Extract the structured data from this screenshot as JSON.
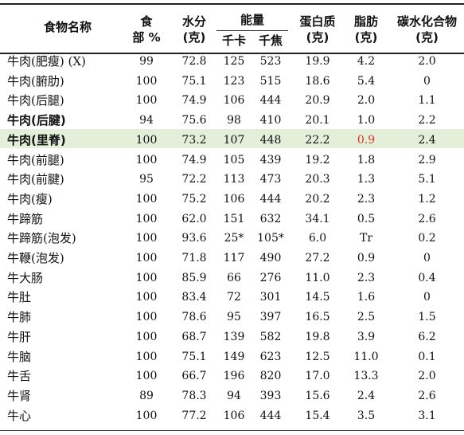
{
  "header": {
    "name": "食物名称",
    "edible_top": "食",
    "edible_bottom": "部 %",
    "water_top": "水分",
    "water_bottom": "(克)",
    "energy": "能量",
    "kcal": "千卡",
    "kj": "千焦",
    "protein_top": "蛋白质",
    "protein_bottom": "(克)",
    "fat_top": "脂肪",
    "fat_bottom": "(克)",
    "carb_top": "碳水化合物",
    "carb_bottom": "(克)"
  },
  "rows": [
    {
      "name": "牛肉(肥瘦) (X)",
      "edible": "99",
      "water": "72.8",
      "kcal": "125",
      "kj": "523",
      "protein": "19.9",
      "fat": "4.2",
      "carb": "2.0"
    },
    {
      "name": "牛肉(腑肋)",
      "edible": "100",
      "water": "75.1",
      "kcal": "123",
      "kj": "515",
      "protein": "18.6",
      "fat": "5.4",
      "carb": "0"
    },
    {
      "name": "牛肉(后腿)",
      "edible": "100",
      "water": "74.9",
      "kcal": "106",
      "kj": "444",
      "protein": "20.9",
      "fat": "2.0",
      "carb": "1.1"
    },
    {
      "name": "牛肉(后腱)",
      "edible": "94",
      "water": "75.6",
      "kcal": "98",
      "kj": "410",
      "protein": "20.1",
      "fat": "1.0",
      "carb": "2.2",
      "bold": true
    },
    {
      "name": "牛肉(里脊)",
      "edible": "100",
      "water": "73.2",
      "kcal": "107",
      "kj": "448",
      "protein": "22.2",
      "fat": "0.9",
      "carb": "2.4",
      "bold": true,
      "highlight": true,
      "fat_color": "#e03020"
    },
    {
      "name": "牛肉(前腿)",
      "edible": "100",
      "water": "74.9",
      "kcal": "105",
      "kj": "439",
      "protein": "19.2",
      "fat": "1.8",
      "carb": "2.9"
    },
    {
      "name": "牛肉(前腱)",
      "edible": "95",
      "water": "72.2",
      "kcal": "113",
      "kj": "473",
      "protein": "20.3",
      "fat": "1.3",
      "carb": "5.1"
    },
    {
      "name": "牛肉(瘦)",
      "edible": "100",
      "water": "75.2",
      "kcal": "106",
      "kj": "444",
      "protein": "20.2",
      "fat": "2.3",
      "carb": "1.2"
    },
    {
      "name": "牛蹄筋",
      "edible": "100",
      "water": "62.0",
      "kcal": "151",
      "kj": "632",
      "protein": "34.1",
      "fat": "0.5",
      "carb": "2.6"
    },
    {
      "name": "牛蹄筋(泡发)",
      "edible": "100",
      "water": "93.6",
      "kcal": "25*",
      "kj": "105*",
      "protein": "6.0",
      "fat": "Tr",
      "carb": "0.2"
    },
    {
      "name": "牛鞭(泡发)",
      "edible": "100",
      "water": "71.8",
      "kcal": "117",
      "kj": "490",
      "protein": "27.2",
      "fat": "0.9",
      "carb": "0"
    },
    {
      "name": "牛大肠",
      "edible": "100",
      "water": "85.9",
      "kcal": "66",
      "kj": "276",
      "protein": "11.0",
      "fat": "2.3",
      "carb": "0.4"
    },
    {
      "name": "牛肚",
      "edible": "100",
      "water": "83.4",
      "kcal": "72",
      "kj": "301",
      "protein": "14.5",
      "fat": "1.6",
      "carb": "0"
    },
    {
      "name": "牛肺",
      "edible": "100",
      "water": "78.6",
      "kcal": "95",
      "kj": "397",
      "protein": "16.5",
      "fat": "2.5",
      "carb": "1.5"
    },
    {
      "name": "牛肝",
      "edible": "100",
      "water": "68.7",
      "kcal": "139",
      "kj": "582",
      "protein": "19.8",
      "fat": "3.9",
      "carb": "6.2"
    },
    {
      "name": "牛脑",
      "edible": "100",
      "water": "75.1",
      "kcal": "149",
      "kj": "623",
      "protein": "12.5",
      "fat": "11.0",
      "carb": "0.1"
    },
    {
      "name": "牛舌",
      "edible": "100",
      "water": "66.7",
      "kcal": "196",
      "kj": "820",
      "protein": "17.0",
      "fat": "13.3",
      "carb": "2.0"
    },
    {
      "name": "牛肾",
      "edible": "89",
      "water": "78.3",
      "kcal": "94",
      "kj": "393",
      "protein": "15.6",
      "fat": "2.4",
      "carb": "2.6"
    },
    {
      "name": "牛心",
      "edible": "100",
      "water": "77.2",
      "kcal": "106",
      "kj": "444",
      "protein": "15.4",
      "fat": "3.5",
      "carb": "3.1"
    }
  ]
}
